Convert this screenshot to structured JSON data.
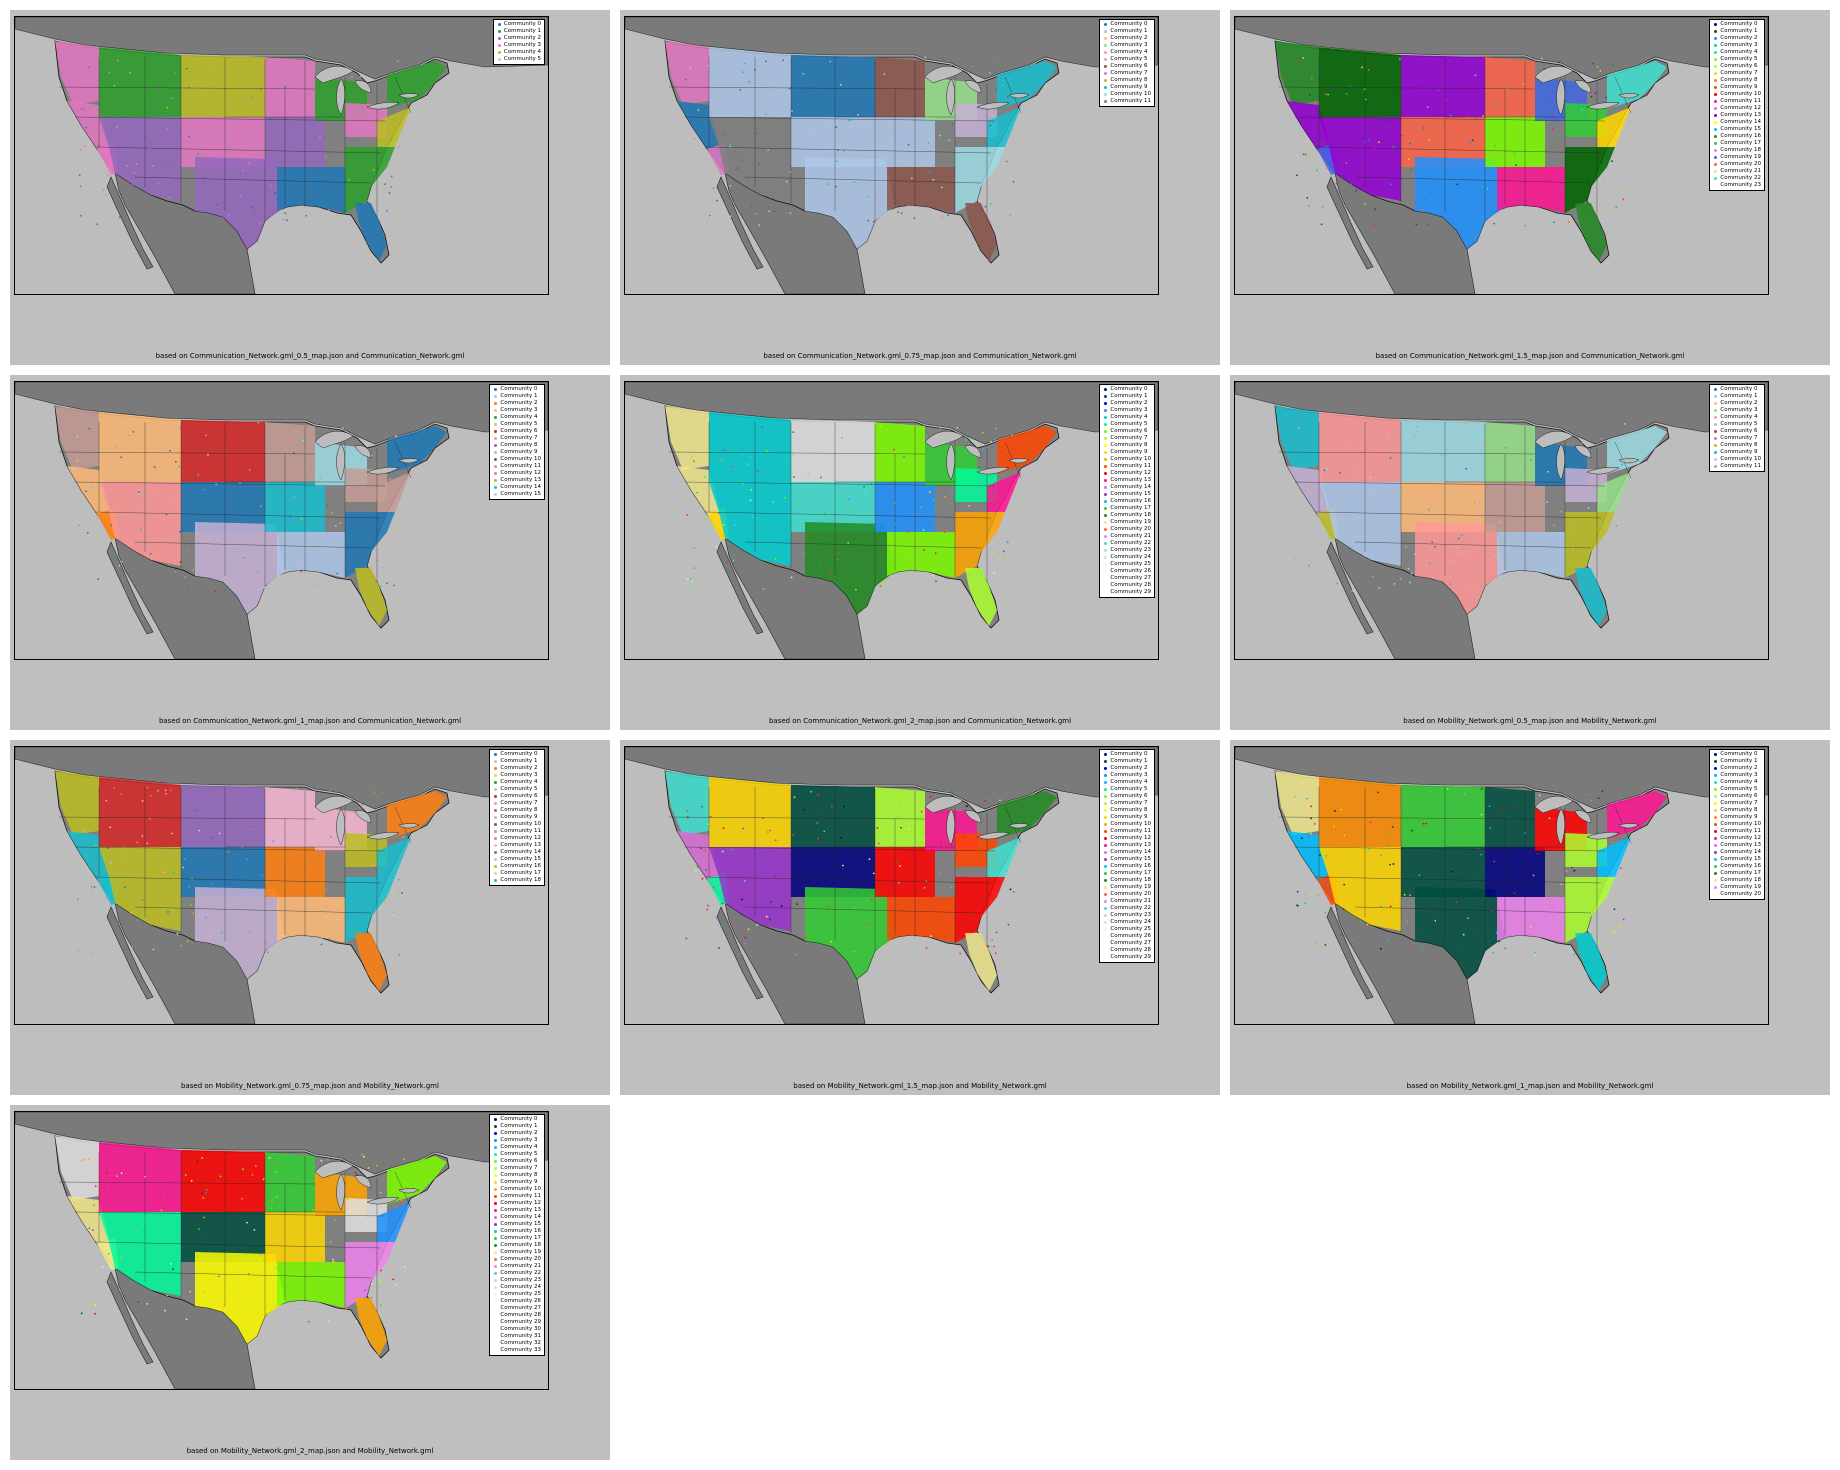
{
  "panels": [
    {
      "caption": "based on Communication_Network.gml_0.5_map.json and Communication_Network.gml",
      "communities": [
        "Community 0",
        "Community 1",
        "Community 2",
        "Community 3",
        "Community 4",
        "Community 5"
      ],
      "colors": [
        "#1f77b4",
        "#2ca02c",
        "#9467bd",
        "#e377c2",
        "#bcbd22",
        "#9edae5"
      ]
    },
    {
      "caption": "based on Communication_Network.gml_0.75_map.json and Communication_Network.gml",
      "communities": [
        "Community 0",
        "Community 1",
        "Community 2",
        "Community 3",
        "Community 4",
        "Community 5",
        "Community 6",
        "Community 7",
        "Community 8",
        "Community 9",
        "Community 10",
        "Community 11"
      ],
      "colors": [
        "#1f77b4",
        "#aec7e8",
        "#ffbb78",
        "#98df8a",
        "#ff9896",
        "#c5b0d5",
        "#8c564b",
        "#e377c2",
        "#bcbd22",
        "#17becf",
        "#9edae5",
        "#7f7f7f"
      ]
    },
    {
      "caption": "based on Communication_Network.gml_1.5_map.json and Communication_Network.gml",
      "communities": [
        "Community 0",
        "Community 1",
        "Community 2",
        "Community 3",
        "Community 4",
        "Community 5",
        "Community 6",
        "Community 7",
        "Community 8",
        "Community 9",
        "Community 10",
        "Community 11",
        "Community 12",
        "Community 13",
        "Community 14",
        "Community 15",
        "Community 16",
        "Community 17",
        "Community 18",
        "Community 19",
        "Community 20",
        "Community 21",
        "Community 22",
        "Community 23"
      ],
      "colors": [
        "#000080",
        "#006400",
        "#1e90ff",
        "#00ced1",
        "#00ff7f",
        "#7cfc00",
        "#adff2f",
        "#ffd700",
        "#ff8c00",
        "#ff4500",
        "#ff0000",
        "#ff1493",
        "#da70d6",
        "#9400d3",
        "#ffff00",
        "#00bfff",
        "#228b22",
        "#32cd32",
        "#ee82ee",
        "#4169e1",
        "#ff6347",
        "#f0e68c",
        "#40e0d0",
        "#ffffff"
      ]
    },
    {
      "caption": "based on Communication_Network.gml_1_map.json and Communication_Network.gml",
      "communities": [
        "Community 0",
        "Community 1",
        "Community 2",
        "Community 3",
        "Community 4",
        "Community 5",
        "Community 6",
        "Community 7",
        "Community 8",
        "Community 9",
        "Community 10",
        "Community 11",
        "Community 12",
        "Community 13",
        "Community 14",
        "Community 15"
      ],
      "colors": [
        "#1f77b4",
        "#aec7e8",
        "#ff7f0e",
        "#ffbb78",
        "#2ca02c",
        "#98df8a",
        "#d62728",
        "#ff9896",
        "#9467bd",
        "#c5b0d5",
        "#8c564b",
        "#c49c94",
        "#e377c2",
        "#bcbd22",
        "#17becf",
        "#9edae5"
      ]
    },
    {
      "caption": "based on Communication_Network.gml_2_map.json and Communication_Network.gml",
      "communities": [
        "Community 0",
        "Community 1",
        "Community 2",
        "Community 3",
        "Community 4",
        "Community 5",
        "Community 6",
        "Community 7",
        "Community 8",
        "Community 9",
        "Community 10",
        "Community 11",
        "Community 12",
        "Community 13",
        "Community 14",
        "Community 15",
        "Community 16",
        "Community 17",
        "Community 18",
        "Community 19",
        "Community 20",
        "Community 21",
        "Community 22",
        "Community 23",
        "Community 24",
        "Community 25",
        "Community 26",
        "Community 27",
        "Community 28",
        "Community 29"
      ],
      "colors": [
        "#000080",
        "#004d40",
        "#0000cd",
        "#1e90ff",
        "#00ced1",
        "#00fa9a",
        "#7cfc00",
        "#adff2f",
        "#ffff00",
        "#ffd700",
        "#ffa500",
        "#ff4500",
        "#ff0000",
        "#ff1493",
        "#da70d6",
        "#9932cc",
        "#00bfff",
        "#32cd32",
        "#228b22",
        "#f0e68c",
        "#ff6347",
        "#ee82ee",
        "#40e0d0",
        "#b0e0e6",
        "#e0e0e0",
        "#f5f5f5",
        "#fafafa",
        "#ffffff",
        "#ffffff",
        "#ffffff"
      ]
    },
    {
      "caption": "based on Mobility_Network.gml_0.5_map.json and Mobility_Network.gml",
      "communities": [
        "Community 0",
        "Community 1",
        "Community 2",
        "Community 3",
        "Community 4",
        "Community 5",
        "Community 6",
        "Community 7",
        "Community 8",
        "Community 9",
        "Community 10",
        "Community 11"
      ],
      "colors": [
        "#1f77b4",
        "#aec7e8",
        "#ffbb78",
        "#98df8a",
        "#ff9896",
        "#c5b0d5",
        "#8c564b",
        "#e377c2",
        "#bcbd22",
        "#17becf",
        "#9edae5",
        "#c49c94"
      ]
    },
    {
      "caption": "based on Mobility_Network.gml_0.75_map.json and Mobility_Network.gml",
      "communities": [
        "Community 0",
        "Community 1",
        "Community 2",
        "Community 3",
        "Community 4",
        "Community 5",
        "Community 6",
        "Community 7",
        "Community 8",
        "Community 9",
        "Community 10",
        "Community 11",
        "Community 12",
        "Community 13",
        "Community 14",
        "Community 15",
        "Community 16",
        "Community 17",
        "Community 18"
      ],
      "colors": [
        "#1f77b4",
        "#aec7e8",
        "#ff7f0e",
        "#ffbb78",
        "#2ca02c",
        "#98df8a",
        "#d62728",
        "#ff9896",
        "#9467bd",
        "#c5b0d5",
        "#8c564b",
        "#c49c94",
        "#e377c2",
        "#f7b6d2",
        "#7f7f7f",
        "#c7c7c7",
        "#bcbd22",
        "#dbdb8d",
        "#17becf"
      ]
    },
    {
      "caption": "based on Mobility_Network.gml_1.5_map.json and Mobility_Network.gml",
      "communities": [
        "Community 0",
        "Community 1",
        "Community 2",
        "Community 3",
        "Community 4",
        "Community 5",
        "Community 6",
        "Community 7",
        "Community 8",
        "Community 9",
        "Community 10",
        "Community 11",
        "Community 12",
        "Community 13",
        "Community 14",
        "Community 15",
        "Community 16",
        "Community 17",
        "Community 18",
        "Community 19",
        "Community 20",
        "Community 21",
        "Community 22",
        "Community 23",
        "Community 24",
        "Community 25",
        "Community 26",
        "Community 27",
        "Community 28",
        "Community 29"
      ],
      "colors": [
        "#000080",
        "#004d40",
        "#0000cd",
        "#1e90ff",
        "#00bfff",
        "#00fa9a",
        "#7cfc00",
        "#adff2f",
        "#ffff00",
        "#ffd700",
        "#ffa500",
        "#ff4500",
        "#ff0000",
        "#ff1493",
        "#da70d6",
        "#9932cc",
        "#00ced1",
        "#32cd32",
        "#228b22",
        "#f0e68c",
        "#ff6347",
        "#ee82ee",
        "#40e0d0",
        "#b0e0e6",
        "#e0e0e0",
        "#f5f5f5",
        "#fafafa",
        "#ffffff",
        "#ffffff",
        "#ffffff"
      ]
    },
    {
      "caption": "based on Mobility_Network.gml_1_map.json and Mobility_Network.gml",
      "communities": [
        "Community 0",
        "Community 1",
        "Community 2",
        "Community 3",
        "Community 4",
        "Community 5",
        "Community 6",
        "Community 7",
        "Community 8",
        "Community 9",
        "Community 10",
        "Community 11",
        "Community 12",
        "Community 13",
        "Community 14",
        "Community 15",
        "Community 16",
        "Community 17",
        "Community 18",
        "Community 19",
        "Community 20"
      ],
      "colors": [
        "#000080",
        "#004d40",
        "#0000cd",
        "#00bfff",
        "#00fa9a",
        "#7cfc00",
        "#adff2f",
        "#ffff00",
        "#ffd700",
        "#ff8c00",
        "#ff4500",
        "#ff0000",
        "#ff1493",
        "#da70d6",
        "#9932cc",
        "#00ced1",
        "#32cd32",
        "#228b22",
        "#f0e68c",
        "#ee82ee",
        "#ffffff"
      ]
    },
    {
      "caption": "based on Mobility_Network.gml_2_map.json and Mobility_Network.gml",
      "communities": [
        "Community 0",
        "Community 1",
        "Community 2",
        "Community 3",
        "Community 4",
        "Community 5",
        "Community 6",
        "Community 7",
        "Community 8",
        "Community 9",
        "Community 10",
        "Community 11",
        "Community 12",
        "Community 13",
        "Community 14",
        "Community 15",
        "Community 16",
        "Community 17",
        "Community 18",
        "Community 19",
        "Community 20",
        "Community 21",
        "Community 22",
        "Community 23",
        "Community 24",
        "Community 25",
        "Community 26",
        "Community 27",
        "Community 28",
        "Community 29",
        "Community 30",
        "Community 31",
        "Community 32",
        "Community 33"
      ],
      "colors": [
        "#000080",
        "#004d40",
        "#0000cd",
        "#1e90ff",
        "#00bfff",
        "#00fa9a",
        "#7cfc00",
        "#adff2f",
        "#ffff00",
        "#ffd700",
        "#ffa500",
        "#ff4500",
        "#ff0000",
        "#ff1493",
        "#da70d6",
        "#9932cc",
        "#00ced1",
        "#32cd32",
        "#228b22",
        "#f0e68c",
        "#ff6347",
        "#ee82ee",
        "#40e0d0",
        "#b0e0e6",
        "#e0e0e0",
        "#f5f5f5",
        "#fafafa",
        "#ffffff",
        "#ffffff",
        "#ffffff",
        "#ffffff",
        "#ffffff",
        "#ffffff",
        "#ffffff"
      ]
    }
  ]
}
